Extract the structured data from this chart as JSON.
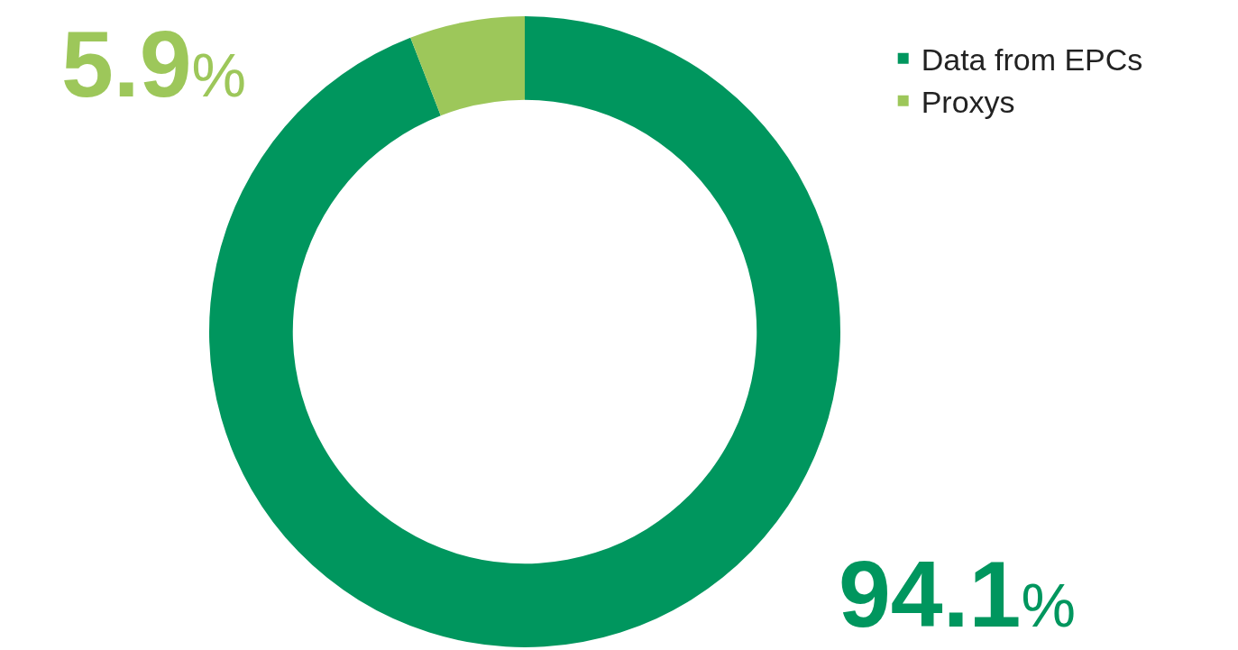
{
  "chart_data": {
    "type": "donut",
    "categories": [
      "Data from EPCs",
      "Proxys"
    ],
    "values": [
      94.1,
      5.9
    ],
    "colors": [
      "#00965e",
      "#9dc75a"
    ],
    "value_labels": [
      "94.1%",
      "5.9%"
    ],
    "legend": "top right"
  }
}
